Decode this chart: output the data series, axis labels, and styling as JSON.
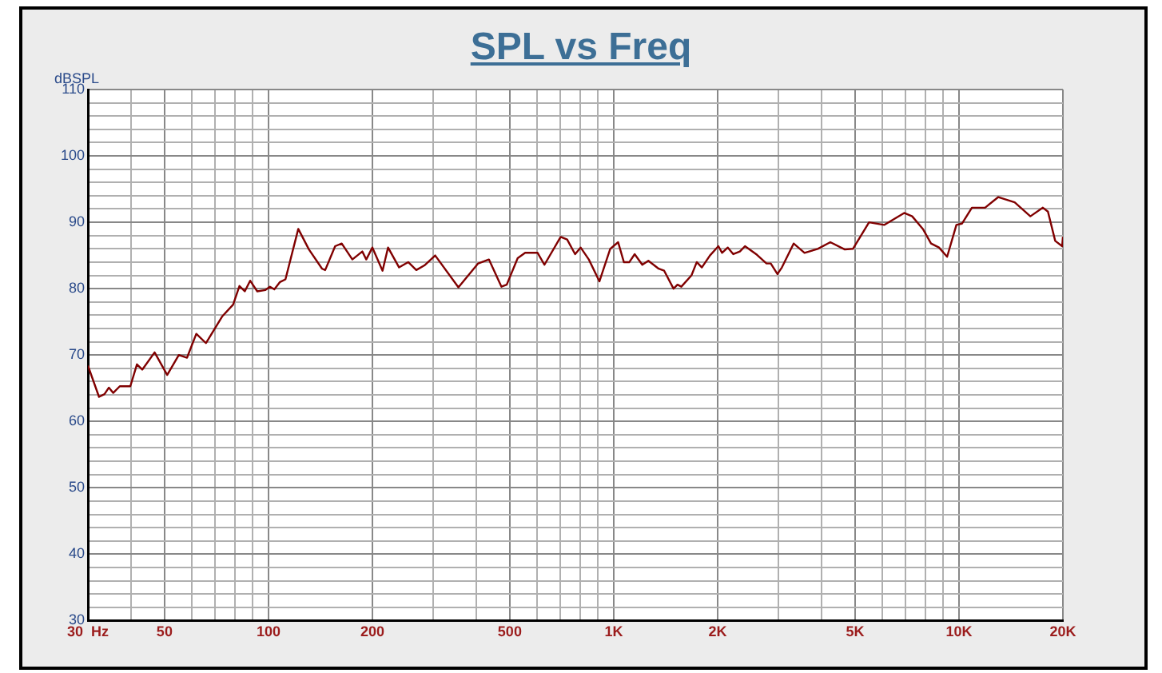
{
  "chart_data": {
    "type": "line",
    "title": "SPL vs Freq",
    "ylabel": "dBSPL",
    "log": "x",
    "grid": true,
    "legend": false,
    "marker": "none",
    "line_style": "solid",
    "xlim": [
      30,
      20000
    ],
    "ylim": [
      30,
      110
    ],
    "xticks": [
      {
        "value": 30,
        "label": "30  Hz"
      },
      {
        "value": 40,
        "label": null
      },
      50,
      {
        "value": 60,
        "label": null
      },
      {
        "value": 70,
        "label": null
      },
      {
        "value": 80,
        "label": null
      },
      {
        "value": 90,
        "label": null
      },
      100,
      200,
      {
        "value": 300,
        "label": null
      },
      {
        "value": 400,
        "label": null
      },
      500,
      {
        "value": 600,
        "label": null
      },
      {
        "value": 700,
        "label": null
      },
      {
        "value": 800,
        "label": null
      },
      {
        "value": 900,
        "label": null
      },
      {
        "value": 1000,
        "label": "1K"
      },
      {
        "value": 2000,
        "label": "2K"
      },
      {
        "value": 3000,
        "label": null
      },
      {
        "value": 4000,
        "label": null
      },
      {
        "value": 5000,
        "label": "5K"
      },
      {
        "value": 6000,
        "label": null
      },
      {
        "value": 7000,
        "label": null
      },
      {
        "value": 8000,
        "label": null
      },
      {
        "value": 9000,
        "label": null
      },
      {
        "value": 10000,
        "label": "10K"
      },
      {
        "value": 20000,
        "label": "20K"
      }
    ],
    "yticks": [
      30,
      {
        "value": 32,
        "label": null
      },
      {
        "value": 34,
        "label": null
      },
      {
        "value": 36,
        "label": null
      },
      {
        "value": 38,
        "label": null
      },
      40,
      {
        "value": 42,
        "label": null
      },
      {
        "value": 44,
        "label": null
      },
      {
        "value": 46,
        "label": null
      },
      {
        "value": 48,
        "label": null
      },
      50,
      {
        "value": 52,
        "label": null
      },
      {
        "value": 54,
        "label": null
      },
      {
        "value": 56,
        "label": null
      },
      {
        "value": 58,
        "label": null
      },
      60,
      {
        "value": 62,
        "label": null
      },
      {
        "value": 64,
        "label": null
      },
      {
        "value": 66,
        "label": null
      },
      {
        "value": 68,
        "label": null
      },
      70,
      {
        "value": 72,
        "label": null
      },
      {
        "value": 74,
        "label": null
      },
      {
        "value": 76,
        "label": null
      },
      {
        "value": 78,
        "label": null
      },
      80,
      {
        "value": 82,
        "label": null
      },
      {
        "value": 84,
        "label": null
      },
      {
        "value": 86,
        "label": null
      },
      {
        "value": 88,
        "label": null
      },
      90,
      {
        "value": 92,
        "label": null
      },
      {
        "value": 94,
        "label": null
      },
      {
        "value": 96,
        "label": null
      },
      {
        "value": 98,
        "label": null
      },
      100,
      {
        "value": 102,
        "label": null
      },
      {
        "value": 104,
        "label": null
      },
      {
        "value": 106,
        "label": null
      },
      {
        "value": 108,
        "label": null
      },
      110
    ],
    "x": [
      30,
      32.3,
      33.5,
      34.5,
      35.5,
      37.1,
      39.8,
      41.6,
      43.1,
      46.8,
      50.9,
      55,
      58.1,
      61.8,
      65.9,
      73.4,
      79,
      82.4,
      85.4,
      88.5,
      92.8,
      98,
      101,
      104,
      108,
      112,
      122,
      131,
      143,
      146,
      156,
      163,
      175,
      187,
      192,
      200,
      214,
      222,
      239,
      254,
      268,
      283,
      304,
      355,
      405,
      435,
      473,
      490,
      527,
      554,
      602,
      630,
      702,
      733,
      773,
      802,
      847,
      909,
      977,
      1030,
      1070,
      1110,
      1150,
      1210,
      1260,
      1350,
      1400,
      1490,
      1530,
      1570,
      1680,
      1740,
      1800,
      1900,
      2010,
      2060,
      2140,
      2220,
      2320,
      2400,
      2600,
      2770,
      2850,
      2980,
      3070,
      3320,
      3570,
      3900,
      4240,
      4670,
      4930,
      5490,
      6070,
      6940,
      7320,
      7860,
      8300,
      8750,
      9240,
      9830,
      10200,
      10900,
      11900,
      13000,
      14500,
      16100,
      17500,
      18100,
      19000,
      19900,
      20000
    ],
    "series": [
      {
        "color": "#800000",
        "values": [
          68.4,
          63.7,
          64.1,
          65.1,
          64.3,
          65.3,
          65.3,
          68.6,
          67.8,
          70.4,
          67,
          70,
          69.6,
          73.2,
          71.8,
          75.8,
          77.6,
          80.4,
          79.6,
          81.2,
          79.6,
          79.8,
          80.3,
          79.9,
          81,
          81.4,
          89,
          85.9,
          83,
          82.8,
          86.4,
          86.8,
          84.4,
          85.6,
          84.4,
          86.2,
          82.7,
          86.2,
          83.2,
          84,
          82.8,
          83.5,
          85,
          80.2,
          83.8,
          84.4,
          80.3,
          80.6,
          84.6,
          85.4,
          85.4,
          83.6,
          87.8,
          87.4,
          85.2,
          86.2,
          84.4,
          81.1,
          86,
          87,
          84,
          84,
          85.2,
          83.6,
          84.2,
          83,
          82.7,
          80,
          80.6,
          80.3,
          82,
          84,
          83.2,
          85,
          86.4,
          85.4,
          86.2,
          85.2,
          85.6,
          86.4,
          85.1,
          83.8,
          83.8,
          82.2,
          83.2,
          86.8,
          85.4,
          86,
          87,
          85.9,
          86,
          90,
          89.6,
          91.4,
          90.9,
          89,
          86.8,
          86.2,
          84.8,
          89.6,
          89.8,
          92.2,
          92.2,
          93.8,
          93,
          90.9,
          92.2,
          91.6,
          87.2,
          86.4,
          87.8
        ]
      }
    ]
  }
}
